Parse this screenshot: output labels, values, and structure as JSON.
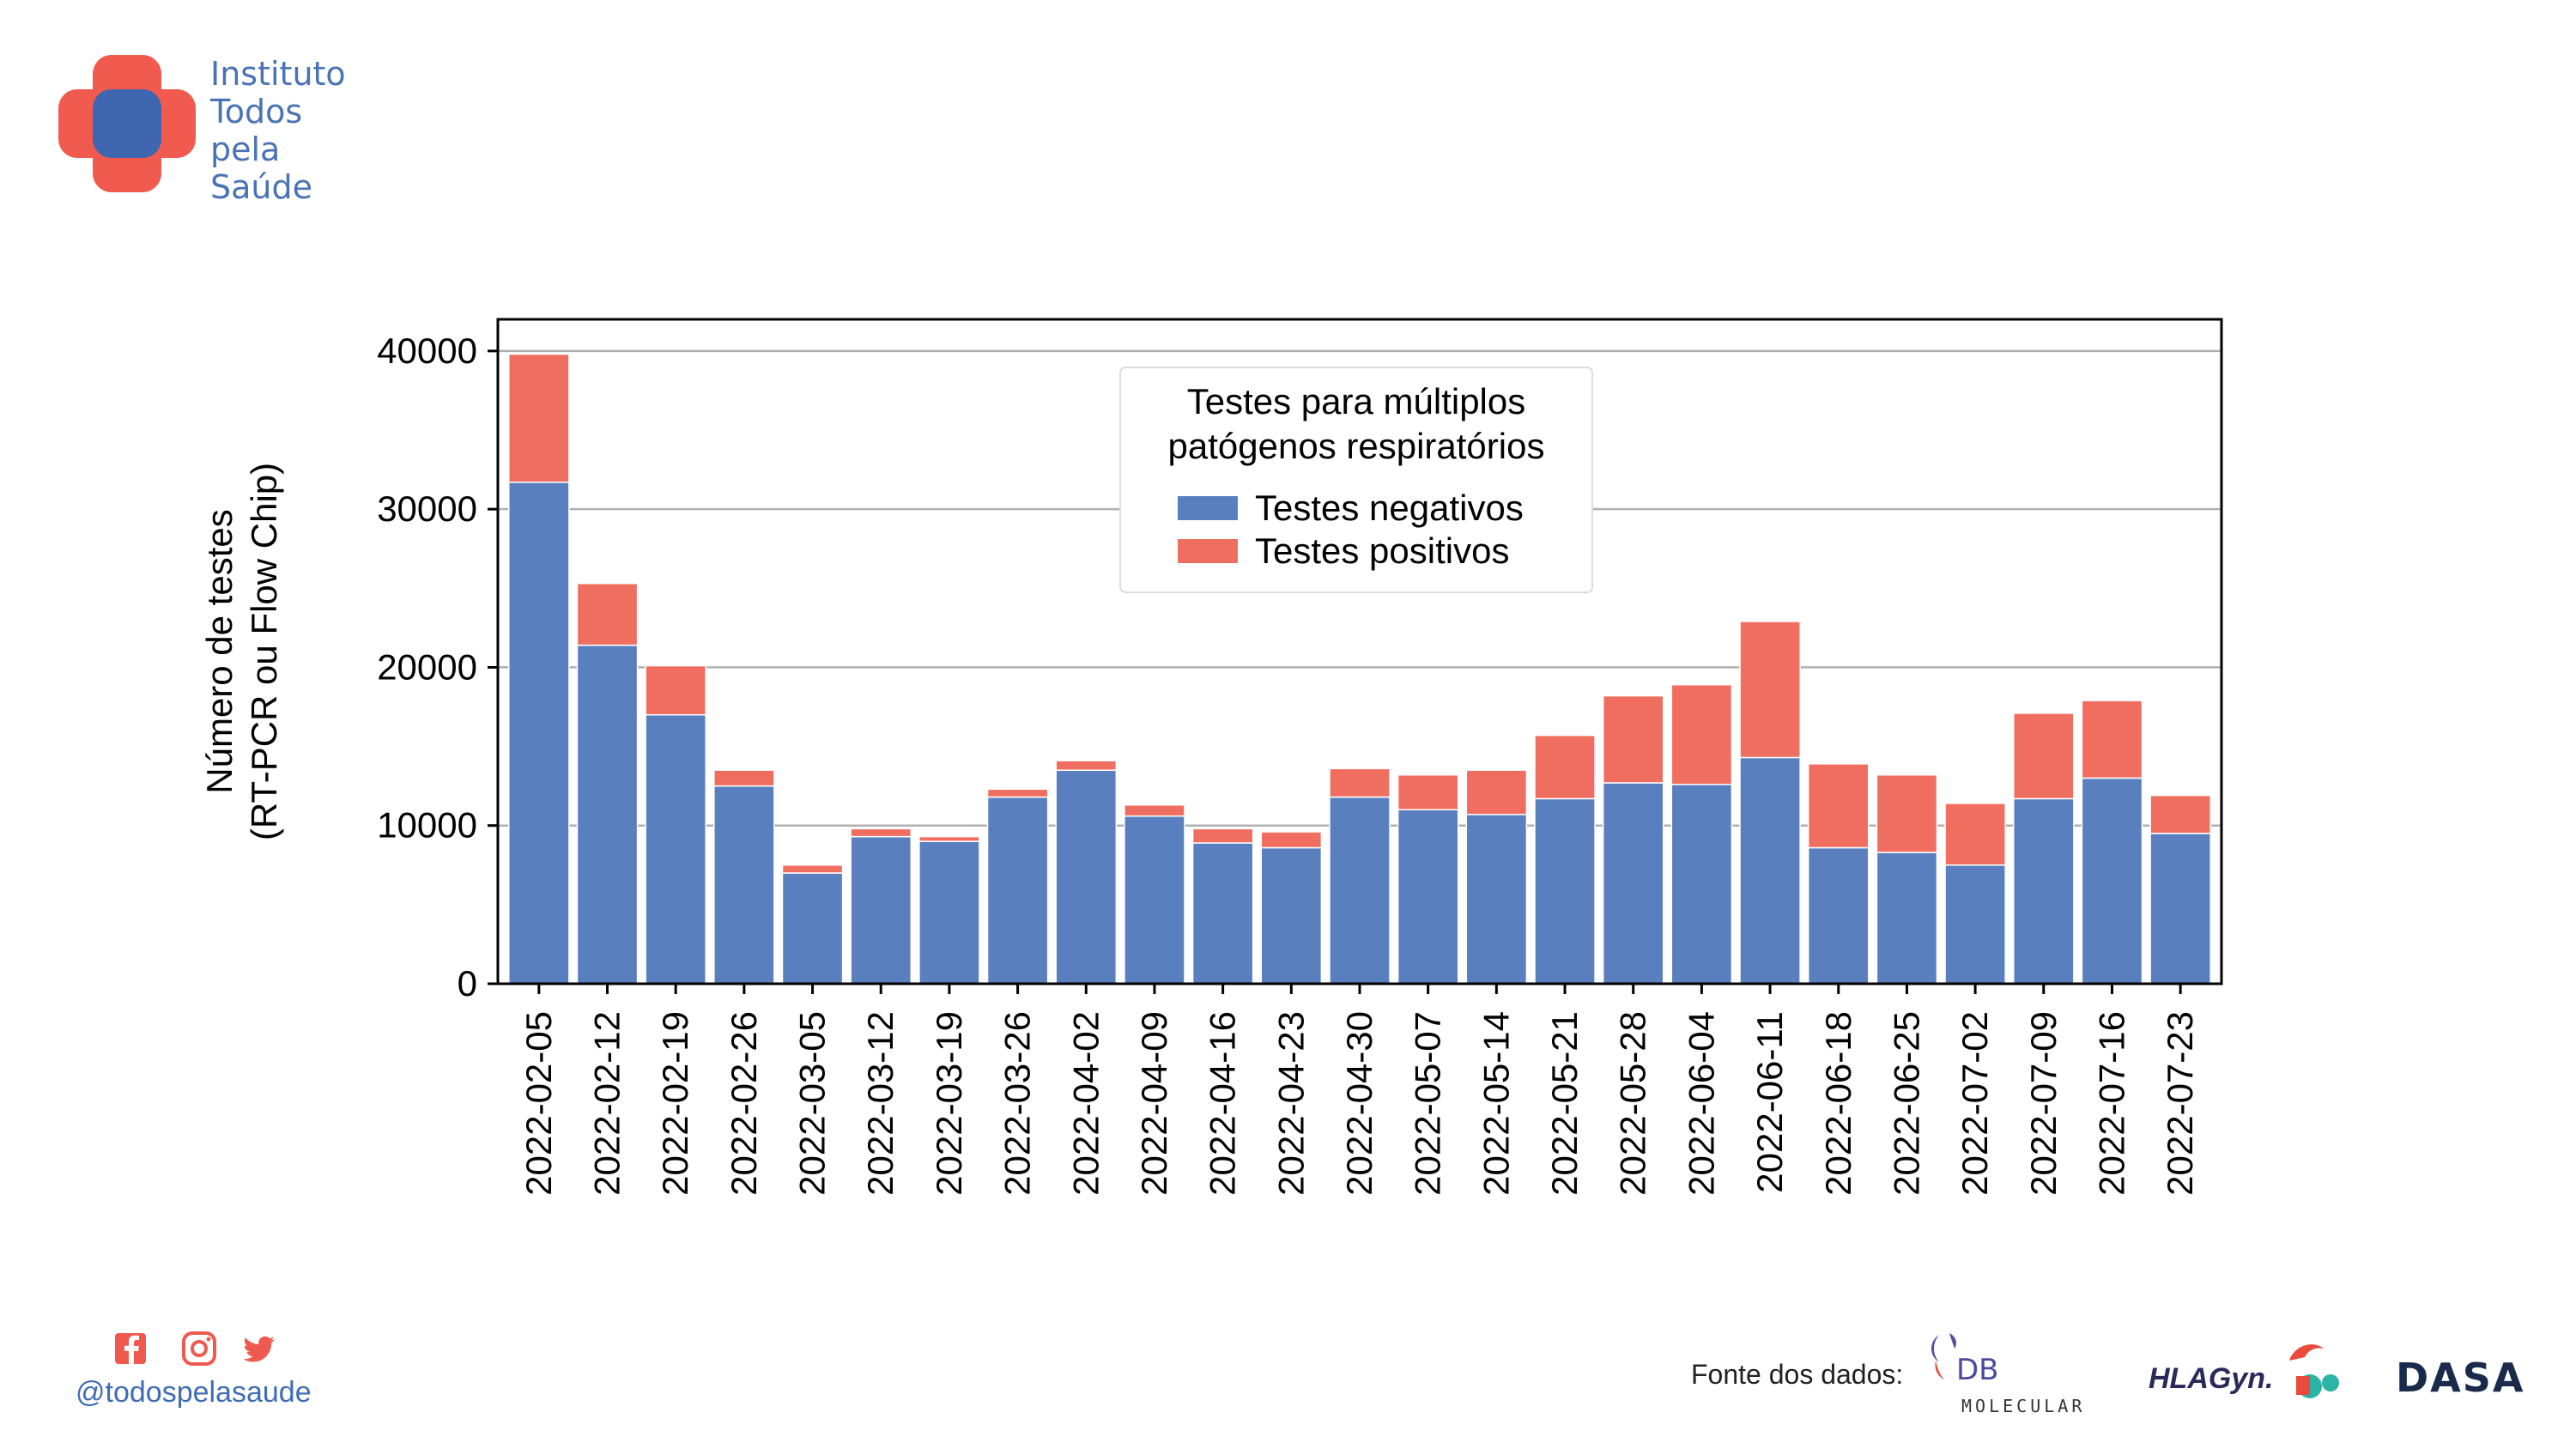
{
  "brand": {
    "lines": [
      "Instituto",
      "Todos",
      "pela",
      "Saúde"
    ],
    "colors": {
      "red": "#f05a4f",
      "blue": "#3f67b1"
    }
  },
  "footer": {
    "social_icons": [
      "facebook-icon",
      "instagram-icon",
      "twitter-icon"
    ],
    "handle": "@todospelasaude",
    "source_label": "Fonte dos dados:",
    "partners": {
      "db": {
        "initials": "DB",
        "sub": "MOLECULAR"
      },
      "hlagyn": "HLAGyn.",
      "dasa": "DASA"
    }
  },
  "chart_data": {
    "type": "bar",
    "stacked": true,
    "ylabel_lines": [
      "Número de testes",
      "(RT-PCR ou Flow Chip)"
    ],
    "ylim": [
      0,
      42000
    ],
    "yticks": [
      0,
      10000,
      20000,
      30000,
      40000
    ],
    "grid": "horizontal",
    "legend": {
      "title_lines": [
        "Testes para múltiplos",
        "patógenos respiratórios"
      ],
      "placement": "upper-center"
    },
    "categories": [
      "2022-02-05",
      "2022-02-12",
      "2022-02-19",
      "2022-02-26",
      "2022-03-05",
      "2022-03-12",
      "2022-03-19",
      "2022-03-26",
      "2022-04-02",
      "2022-04-09",
      "2022-04-16",
      "2022-04-23",
      "2022-04-30",
      "2022-05-07",
      "2022-05-14",
      "2022-05-21",
      "2022-05-28",
      "2022-06-04",
      "2022-06-11",
      "2022-06-18",
      "2022-06-25",
      "2022-07-02",
      "2022-07-09",
      "2022-07-16",
      "2022-07-23"
    ],
    "series": [
      {
        "name": "Testes negativos",
        "color": "#5a7fbe",
        "values": [
          31700,
          21400,
          17000,
          12500,
          7000,
          9300,
          9000,
          11800,
          13500,
          10600,
          8900,
          8600,
          11800,
          11000,
          10700,
          11700,
          12700,
          12600,
          14300,
          8600,
          8300,
          7500,
          11700,
          13000,
          9500
        ]
      },
      {
        "name": "Testes positivos",
        "color": "#f06e5f",
        "values": [
          8100,
          3900,
          3100,
          1000,
          500,
          500,
          300,
          500,
          600,
          700,
          900,
          1000,
          1800,
          2200,
          2800,
          4000,
          5500,
          6300,
          8600,
          5300,
          4900,
          3900,
          5400,
          4900,
          2400
        ]
      }
    ]
  }
}
